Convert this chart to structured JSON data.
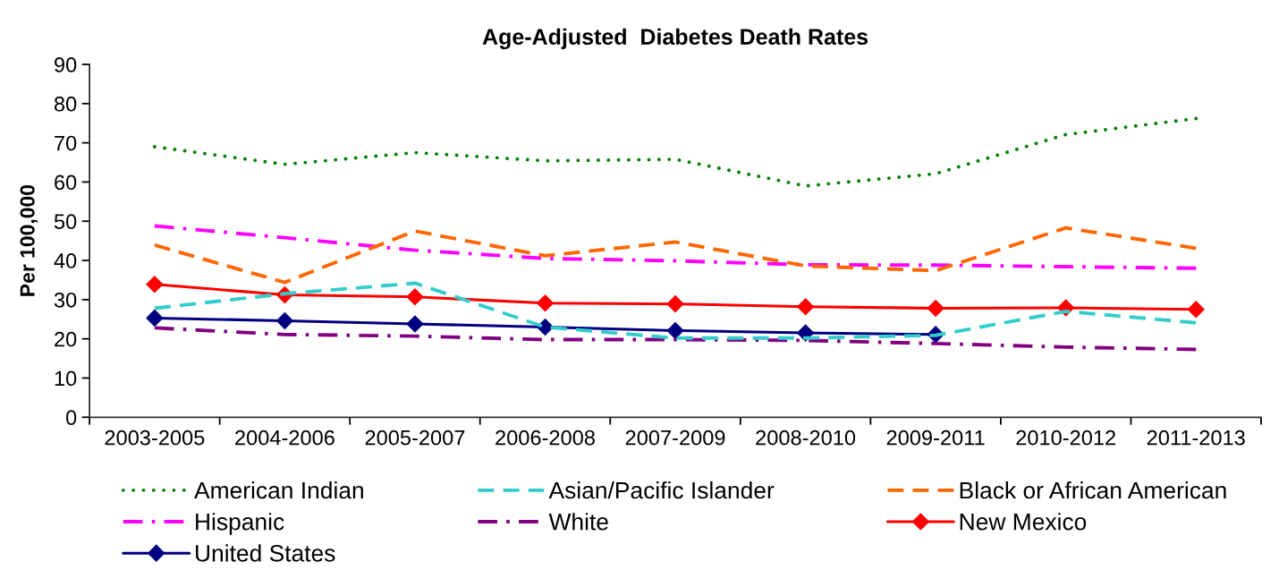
{
  "chart_data": {
    "type": "line",
    "title": "Age-Adjusted  Diabetes Death Rates",
    "ylabel": "Per 100,000",
    "categories": [
      "2003-2005",
      "2004-2006",
      "2005-2007",
      "2006-2008",
      "2007-2009",
      "2008-2010",
      "2009-2011",
      "2010-2012",
      "2011-2013"
    ],
    "ylim": [
      0,
      90
    ],
    "yticks": [
      0,
      10,
      20,
      30,
      40,
      50,
      60,
      70,
      80,
      90
    ],
    "grid": false,
    "legend": "bottom",
    "series": [
      {
        "name": "American Indian",
        "color": "#008000",
        "line_style": "dotted",
        "marker": "none",
        "values": [
          69.0,
          64.5,
          67.5,
          65.4,
          65.8,
          59.0,
          62.1,
          72.1,
          76.2
        ]
      },
      {
        "name": "Asian/Pacific Islander",
        "color": "#33cccc",
        "line_style": "dashed",
        "marker": "none",
        "values": [
          27.8,
          31.5,
          34.2,
          23.0,
          20.2,
          20.2,
          20.9,
          27.0,
          24.1
        ]
      },
      {
        "name": "Black or African American",
        "color": "#ff6600",
        "line_style": "dashed",
        "marker": "none",
        "values": [
          43.9,
          34.4,
          47.5,
          41.2,
          44.7,
          38.6,
          37.4,
          48.3,
          43.1
        ]
      },
      {
        "name": "Hispanic",
        "color": "#ff00ff",
        "line_style": "dashdot",
        "marker": "none",
        "values": [
          48.8,
          45.8,
          42.6,
          40.5,
          39.9,
          38.9,
          38.8,
          38.4,
          38.0
        ]
      },
      {
        "name": "White",
        "color": "#800080",
        "line_style": "dashdot",
        "marker": "none",
        "values": [
          22.8,
          21.1,
          20.7,
          19.8,
          19.8,
          19.6,
          18.8,
          17.9,
          17.3
        ]
      },
      {
        "name": "New Mexico",
        "color": "#ff0000",
        "line_style": "solid",
        "marker": "diamond",
        "values": [
          33.9,
          31.2,
          30.7,
          29.1,
          28.9,
          28.2,
          27.8,
          27.9,
          27.5
        ]
      },
      {
        "name": "United States",
        "color": "#000080",
        "line_style": "solid",
        "marker": "diamond",
        "values": [
          25.3,
          24.6,
          23.8,
          23.0,
          22.1,
          21.5,
          21.1,
          null,
          null
        ]
      }
    ]
  }
}
